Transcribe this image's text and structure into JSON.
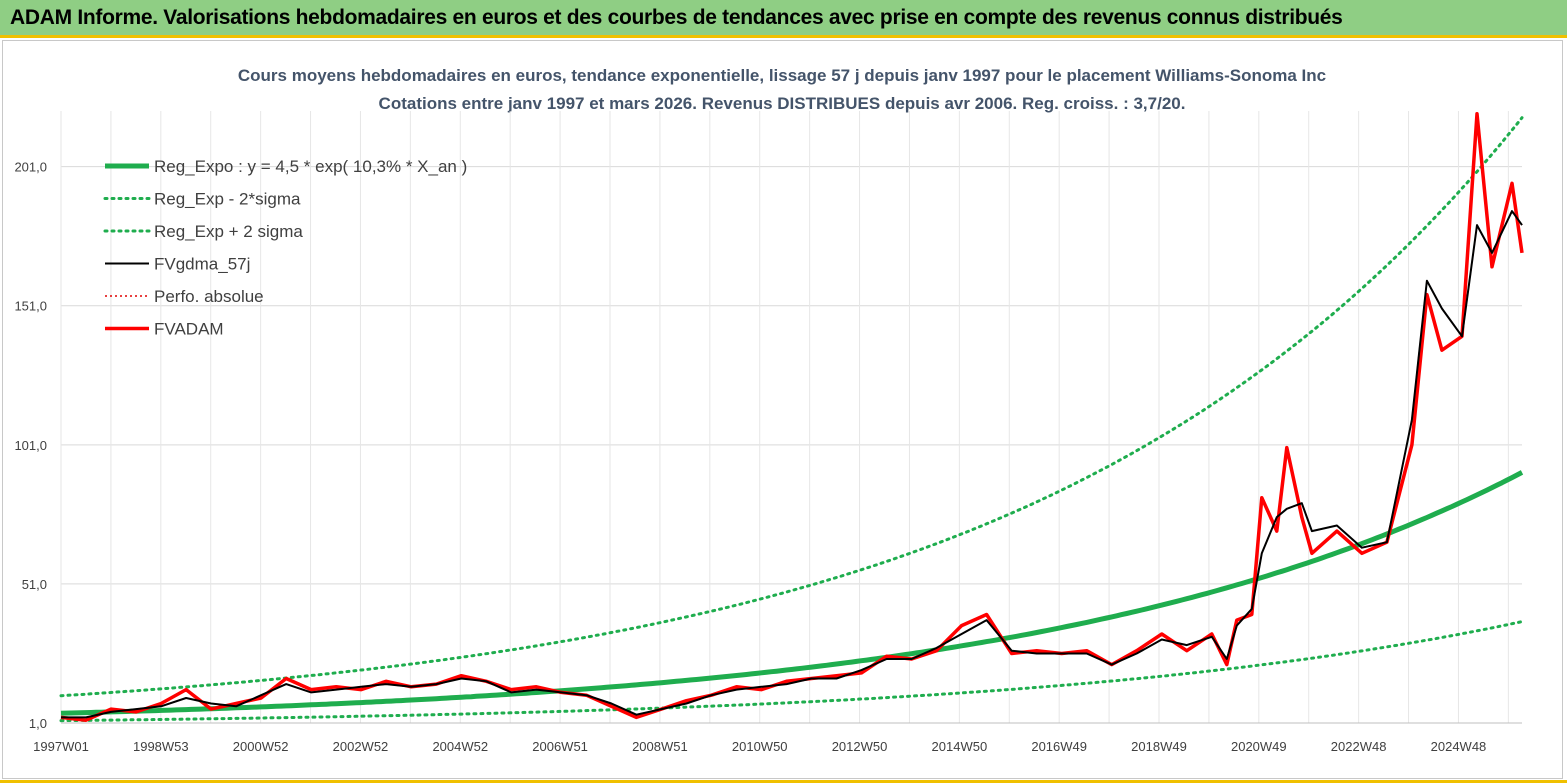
{
  "header": {
    "title": "ADAM Informe. Valorisations hebdomadaires en euros et des courbes de tendances avec prise en compte des revenus connus distribués"
  },
  "colors": {
    "header_bg": "#8fce84",
    "accent": "#f0c000",
    "reg_expo": "#1fad4e",
    "sigma": "#1fad4e",
    "fvgdma": "#000000",
    "perfo": "#e00000",
    "fvadam": "#ff0000"
  },
  "chart_data": {
    "type": "line",
    "title": "Cours moyens hebdomadaires en euros, tendance exponentielle, lissage 57 j depuis janv 1997 pour le placement Williams-Sonoma Inc",
    "subtitle": "Cotations entre janv 1997 et mars 2026. Revenus DISTRIBUES depuis avr 2006. Reg. croiss. : 3,7/20.",
    "x_ticks": [
      "1997W01",
      "1998W53",
      "2000W52",
      "2002W52",
      "2004W52",
      "2006W51",
      "2008W51",
      "2010W50",
      "2012W50",
      "2014W50",
      "2016W49",
      "2018W49",
      "2020W49",
      "2022W48",
      "2024W48"
    ],
    "x_range": [
      1997.0,
      2026.2
    ],
    "y_ticks": [
      "1,0",
      "51,0",
      "101,0",
      "151,0",
      "201,0"
    ],
    "y_range": [
      1,
      221
    ],
    "grid": true,
    "legend_position": "top-left",
    "series": [
      {
        "name": "Reg_Expo : y = 4,5 * exp( 10,3% *  X_an )",
        "style": "solid-thick",
        "x": [
          1997.0,
          2026.2
        ],
        "formula": {
          "a": 4.5,
          "b": 0.103
        }
      },
      {
        "name": "Reg_Exp - 2*sigma",
        "style": "dotted",
        "x": [
          1997.0,
          2026.2
        ],
        "formula": {
          "a": 1.85,
          "b": 0.103
        }
      },
      {
        "name": "Reg_Exp + 2 sigma",
        "style": "dotted",
        "x": [
          1997.0,
          2026.2
        ],
        "formula": {
          "a": 10.8,
          "b": 0.103
        }
      },
      {
        "name": "FVgdma_57j",
        "style": "solid-thin",
        "x": [
          1997.0,
          1997.5,
          1998.0,
          1998.5,
          1999.0,
          1999.5,
          2000.0,
          2000.5,
          2001.0,
          2001.5,
          2002.0,
          2002.5,
          2003.0,
          2003.5,
          2004.0,
          2004.5,
          2005.0,
          2005.5,
          2006.0,
          2006.5,
          2007.0,
          2007.5,
          2008.0,
          2008.5,
          2009.0,
          2009.5,
          2010.0,
          2010.5,
          2011.0,
          2011.5,
          2012.0,
          2012.5,
          2013.0,
          2013.5,
          2014.0,
          2014.5,
          2015.0,
          2015.5,
          2016.0,
          2016.5,
          2017.0,
          2017.5,
          2018.0,
          2018.5,
          2019.0,
          2019.5,
          2020.0,
          2020.3,
          2020.5,
          2020.8,
          2021.0,
          2021.3,
          2021.5,
          2021.8,
          2022.0,
          2022.5,
          2023.0,
          2023.5,
          2024.0,
          2024.3,
          2024.6,
          2025.0,
          2025.3,
          2025.6,
          2026.0,
          2026.2
        ],
        "y": [
          3,
          3,
          5,
          6,
          7,
          10,
          8,
          7,
          11,
          15,
          12,
          13,
          14,
          15,
          14,
          15,
          17,
          16,
          12,
          13,
          12,
          11,
          8,
          4,
          6,
          8,
          11,
          13,
          14,
          15,
          17,
          17,
          20,
          24,
          24,
          28,
          33,
          38,
          27,
          26,
          26,
          26,
          22,
          26,
          31,
          29,
          32,
          24,
          36,
          42,
          62,
          75,
          78,
          80,
          70,
          72,
          64,
          66,
          110,
          160,
          150,
          140,
          180,
          170,
          185,
          180
        ]
      },
      {
        "name": "Perfo. absolue",
        "style": "dotted-thin",
        "x": [
          1997.0,
          1997.5,
          1998.0,
          1998.5,
          1999.0,
          1999.5,
          2000.0,
          2000.5,
          2001.0,
          2001.5,
          2002.0,
          2002.5,
          2003.0,
          2003.5,
          2004.0,
          2004.5,
          2005.0,
          2005.5,
          2006.0,
          2006.5,
          2007.0,
          2007.5,
          2008.0,
          2008.5,
          2009.0,
          2009.5,
          2010.0,
          2010.5,
          2011.0,
          2011.5,
          2012.0,
          2012.5,
          2013.0,
          2013.5,
          2014.0,
          2014.5,
          2015.0,
          2015.5,
          2016.0,
          2016.5,
          2017.0,
          2017.5,
          2018.0,
          2018.5,
          2019.0,
          2019.5,
          2020.0,
          2020.3,
          2020.5,
          2020.8,
          2021.0,
          2021.3,
          2021.5,
          2021.8,
          2022.0,
          2022.5,
          2023.0,
          2023.5,
          2024.0,
          2024.3,
          2024.6,
          2025.0,
          2025.3,
          2025.6,
          2026.0,
          2026.2
        ],
        "y": [
          3,
          3,
          5,
          6,
          7,
          10,
          8,
          7,
          11,
          15,
          12,
          13,
          14,
          15,
          14,
          15,
          17,
          16,
          12,
          13,
          12,
          11,
          8,
          4,
          6,
          8,
          11,
          13,
          14,
          15,
          17,
          17,
          20,
          24,
          24,
          28,
          33,
          38,
          27,
          26,
          26,
          26,
          22,
          26,
          31,
          29,
          32,
          24,
          36,
          42,
          62,
          75,
          78,
          80,
          70,
          72,
          64,
          66,
          110,
          160,
          150,
          140,
          180,
          170,
          185,
          180
        ]
      },
      {
        "name": "FVADAM",
        "style": "solid-thick",
        "x": [
          1997.0,
          1997.5,
          1998.0,
          1998.5,
          1999.0,
          1999.5,
          2000.0,
          2000.5,
          2001.0,
          2001.5,
          2002.0,
          2002.5,
          2003.0,
          2003.5,
          2004.0,
          2004.5,
          2005.0,
          2005.5,
          2006.0,
          2006.5,
          2007.0,
          2007.5,
          2008.0,
          2008.5,
          2009.0,
          2009.5,
          2010.0,
          2010.5,
          2011.0,
          2011.5,
          2012.0,
          2012.5,
          2013.0,
          2013.5,
          2014.0,
          2014.5,
          2015.0,
          2015.5,
          2016.0,
          2016.5,
          2017.0,
          2017.5,
          2018.0,
          2018.5,
          2019.0,
          2019.5,
          2020.0,
          2020.3,
          2020.5,
          2020.8,
          2021.0,
          2021.3,
          2021.5,
          2021.8,
          2022.0,
          2022.5,
          2023.0,
          2023.5,
          2024.0,
          2024.3,
          2024.6,
          2025.0,
          2025.3,
          2025.6,
          2026.0,
          2026.2
        ],
        "y": [
          3,
          2,
          6,
          5,
          8,
          13,
          6,
          8,
          10,
          17,
          13,
          14,
          13,
          16,
          14,
          15,
          18,
          16,
          13,
          14,
          12,
          11,
          7,
          3,
          6,
          9,
          11,
          14,
          13,
          16,
          17,
          18,
          19,
          25,
          24,
          27,
          36,
          40,
          26,
          27,
          26,
          27,
          22,
          27,
          33,
          27,
          33,
          22,
          38,
          40,
          82,
          70,
          100,
          75,
          62,
          70,
          62,
          66,
          101,
          155,
          135,
          140,
          220,
          165,
          195,
          170
        ]
      }
    ]
  }
}
